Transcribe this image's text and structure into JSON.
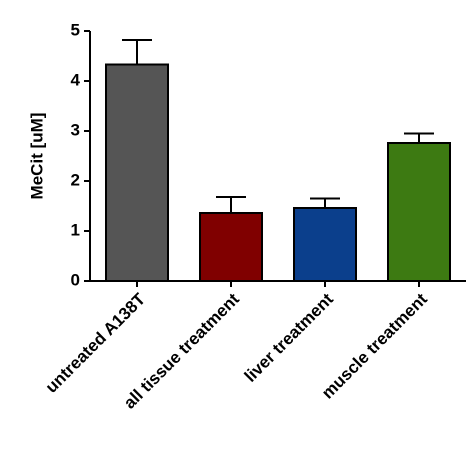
{
  "chart_data": {
    "type": "bar",
    "y_label": "MeCit [uM]",
    "categories": [
      "untreated A138T",
      "all tissue treatment",
      "liver treatment",
      "muscle treatment"
    ],
    "values": [
      4.33,
      1.36,
      1.46,
      2.76
    ],
    "errors": [
      0.49,
      0.32,
      0.19,
      0.19
    ],
    "colors": [
      "#555555",
      "#800000",
      "#0b3f8c",
      "#3d7a12"
    ],
    "ylim": [
      0,
      5
    ],
    "yticks": [
      0,
      1,
      2,
      3,
      4,
      5
    ],
    "grid": false
  }
}
